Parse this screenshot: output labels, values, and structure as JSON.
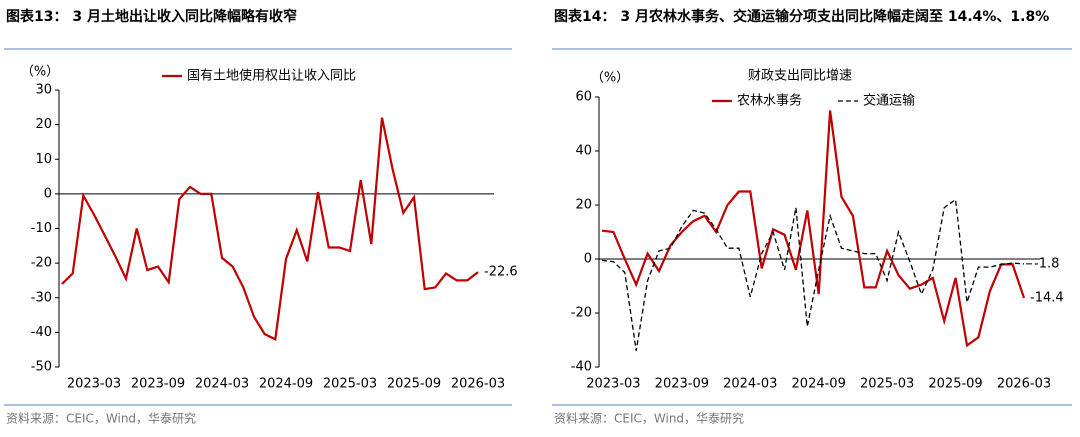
{
  "chart_data": [
    {
      "type": "line",
      "title": "图表13：  3 月土地出让收入同比降幅略有收窄",
      "y_label": "（%）",
      "source": "资料来源：CEIC，Wind，华泰研究",
      "categories": [
        null,
        null,
        null,
        "2023-03",
        null,
        null,
        null,
        null,
        null,
        "2023-09",
        null,
        null,
        null,
        null,
        null,
        "2024-03",
        null,
        null,
        null,
        null,
        null,
        "2024-09",
        null,
        null,
        null,
        null,
        null,
        "2025-03",
        null,
        null,
        null,
        null,
        null,
        "2025-09",
        null,
        null,
        null,
        null,
        null,
        "2026-03"
      ],
      "series": [
        {
          "name": "国有土地使用权出让收入同比",
          "color": "#c00000",
          "dash": false,
          "values": [
            -26,
            -23,
            -0.5,
            -6,
            -12,
            -18,
            -24.5,
            -10,
            -22,
            -21,
            -25.5,
            -1.5,
            2,
            0,
            0,
            -18.5,
            -21,
            -27,
            -35.5,
            -40.5,
            -42,
            -18.8,
            -10.5,
            -19.5,
            0.5,
            -15.5,
            -15.5,
            -16.5,
            4,
            -14.5,
            22,
            7,
            -5.5,
            -1,
            -27.5,
            -27,
            -23,
            -25,
            -25,
            -22.6
          ]
        }
      ],
      "ylim": [
        -50,
        30
      ],
      "yticks": [
        30,
        20,
        10,
        0,
        -10,
        -20,
        -30,
        -40,
        -50
      ]
    },
    {
      "type": "line",
      "title": "图表14：  3 月农林水事务、交通运输分项支出同比降幅走阔至 14.4%、1.8%",
      "subtitle": "财政支出同比增速",
      "y_label": "（%）",
      "source": "资料来源：CEIC，Wind，华泰研究",
      "categories": [
        null,
        "2023-03",
        null,
        null,
        null,
        null,
        null,
        "2023-09",
        null,
        null,
        null,
        null,
        null,
        "2024-03",
        null,
        null,
        null,
        null,
        null,
        "2024-09",
        null,
        null,
        null,
        null,
        null,
        "2025-03",
        null,
        null,
        null,
        null,
        null,
        "2025-09",
        null,
        null,
        null,
        null,
        null,
        "2026-03"
      ],
      "series": [
        {
          "name": "农林水事务",
          "color": "#c00000",
          "dash": false,
          "values": [
            10.5,
            10,
            0,
            -9.5,
            2,
            -4.5,
            5,
            10,
            14,
            16,
            10,
            20,
            25,
            25,
            -3.5,
            11,
            9,
            -4,
            18,
            -13,
            55,
            23,
            16,
            -10.5,
            -10.5,
            3,
            -6,
            -11,
            -9.5,
            -7,
            -23,
            -7,
            -32,
            -29,
            -12,
            -2,
            -2,
            -14.4
          ]
        },
        {
          "name": "交通运输",
          "color": "#000000",
          "dash": true,
          "values": [
            -0.5,
            -1,
            -5,
            -34,
            -8,
            3,
            4,
            12,
            18,
            17,
            11,
            4,
            4,
            -14,
            2,
            10,
            -4,
            19,
            -25,
            -4,
            16,
            4,
            3,
            2,
            2,
            -8,
            10,
            -1,
            -13,
            -4,
            19,
            22,
            -16,
            -3,
            -3,
            -2,
            -1.5,
            -1.8
          ]
        }
      ],
      "ylim": [
        -40,
        60
      ],
      "yticks": [
        60,
        40,
        20,
        0,
        -20,
        -40
      ]
    }
  ]
}
